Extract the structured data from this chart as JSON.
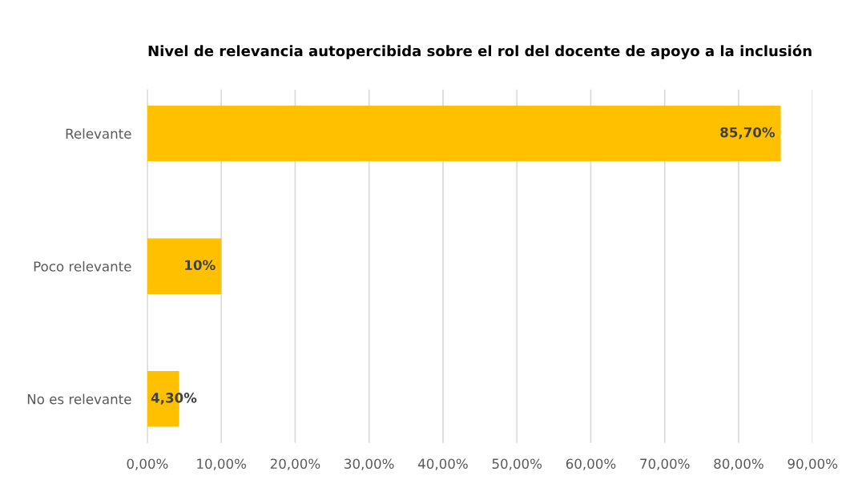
{
  "chart_data": {
    "type": "bar",
    "orientation": "horizontal",
    "title": "Nivel de relevancia autopercibida sobre el rol del docente de apoyo a la inclusión",
    "categories": [
      "Relevante",
      "Poco relevante",
      "No es relevante"
    ],
    "values": [
      85.7,
      10,
      4.3
    ],
    "value_labels": [
      "85,70%",
      "10%",
      "4,30%"
    ],
    "color": "#ffc000",
    "xlim": [
      0,
      90
    ],
    "xticks": [
      {
        "value": 0,
        "label": "0,00%"
      },
      {
        "value": 10,
        "label": "10,00%"
      },
      {
        "value": 20,
        "label": "20,00%"
      },
      {
        "value": 30,
        "label": "30,00%"
      },
      {
        "value": 40,
        "label": "40,00%"
      },
      {
        "value": 50,
        "label": "50,00%"
      },
      {
        "value": 60,
        "label": "60,00%"
      },
      {
        "value": 70,
        "label": "70,00%"
      },
      {
        "value": 80,
        "label": "80,00%"
      },
      {
        "value": 90,
        "label": "90,00%"
      }
    ],
    "grid": "x"
  }
}
